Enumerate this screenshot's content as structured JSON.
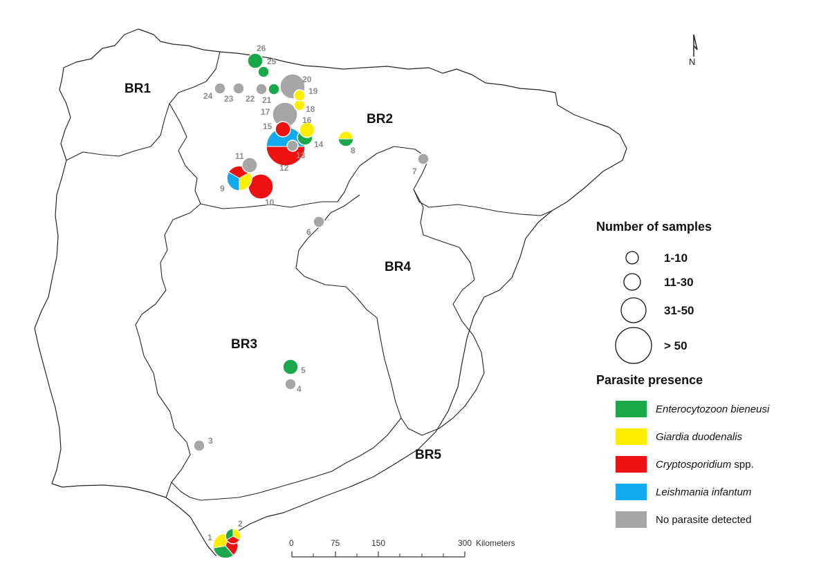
{
  "regions": [
    {
      "id": "br1",
      "label": "BR1"
    },
    {
      "id": "br2",
      "label": "BR2"
    },
    {
      "id": "br3",
      "label": "BR3"
    },
    {
      "id": "br4",
      "label": "BR4"
    },
    {
      "id": "br5",
      "label": "BR5"
    }
  ],
  "colors": {
    "enterocytozoon": "#1aa84a",
    "giardia": "#ffee00",
    "cryptosporidium": "#ee1111",
    "leishmania": "#12aaee",
    "none": "#a6a6a6"
  },
  "sites": [
    {
      "label": "1",
      "size": "31-50",
      "parasites": [
        "cryptosporidium",
        "enterocytozoon",
        "giardia"
      ]
    },
    {
      "label": "2",
      "size": "11-30",
      "parasites": [
        "giardia",
        "cryptosporidium",
        "enterocytozoon"
      ]
    },
    {
      "label": "3",
      "size": "1-10",
      "parasites": [
        "none"
      ]
    },
    {
      "label": "4",
      "size": "1-10",
      "parasites": [
        "none"
      ]
    },
    {
      "label": "5",
      "size": "11-30",
      "parasites": [
        "enterocytozoon"
      ]
    },
    {
      "label": "6",
      "size": "1-10",
      "parasites": [
        "none"
      ]
    },
    {
      "label": "7",
      "size": "1-10",
      "parasites": [
        "none"
      ]
    },
    {
      "label": "8",
      "size": "11-30",
      "parasites": [
        "enterocytozoon",
        "giardia"
      ]
    },
    {
      "label": "9",
      "size": "31-50",
      "parasites": [
        "cryptosporidium",
        "giardia",
        "leishmania"
      ]
    },
    {
      "label": "10",
      "size": "31-50",
      "parasites": [
        "cryptosporidium"
      ]
    },
    {
      "label": "11",
      "size": "11-30",
      "parasites": [
        "none"
      ]
    },
    {
      "label": "12",
      "size": "> 50",
      "parasites": [
        "leishmania",
        "cryptosporidium"
      ]
    },
    {
      "label": "13",
      "size": "1-10",
      "parasites": [
        "none"
      ]
    },
    {
      "label": "14",
      "size": "11-30",
      "parasites": [
        "enterocytozoon"
      ]
    },
    {
      "label": "15",
      "size": "11-30",
      "parasites": [
        "cryptosporidium"
      ]
    },
    {
      "label": "16",
      "size": "11-30",
      "parasites": [
        "giardia"
      ]
    },
    {
      "label": "17",
      "size": "31-50",
      "parasites": [
        "none"
      ]
    },
    {
      "label": "18",
      "size": "1-10",
      "parasites": [
        "giardia"
      ]
    },
    {
      "label": "19",
      "size": "1-10",
      "parasites": [
        "giardia"
      ]
    },
    {
      "label": "20",
      "size": "31-50",
      "parasites": [
        "none"
      ]
    },
    {
      "label": "21",
      "size": "1-10",
      "parasites": [
        "enterocytozoon"
      ]
    },
    {
      "label": "22",
      "size": "1-10",
      "parasites": [
        "none"
      ]
    },
    {
      "label": "23",
      "size": "1-10",
      "parasites": [
        "none"
      ]
    },
    {
      "label": "24",
      "size": "1-10",
      "parasites": [
        "none"
      ]
    },
    {
      "label": "25",
      "size": "1-10",
      "parasites": [
        "enterocytozoon"
      ]
    },
    {
      "label": "26",
      "size": "11-30",
      "parasites": [
        "enterocytozoon"
      ]
    }
  ],
  "legend": {
    "size_title": "Number of samples",
    "sizes": [
      "1-10",
      "11-30",
      "31-50",
      "> 50"
    ],
    "presence_title": "Parasite presence",
    "items": [
      {
        "key": "enterocytozoon",
        "italic": "Enterocytozoon bieneusi",
        "plain": ""
      },
      {
        "key": "giardia",
        "italic": "Giardia duodenalis",
        "plain": ""
      },
      {
        "key": "cryptosporidium",
        "italic": "Cryptosporidium",
        "plain": " spp."
      },
      {
        "key": "leishmania",
        "italic": "Leishmania infantum",
        "plain": ""
      },
      {
        "key": "none",
        "italic": "",
        "plain": "No parasite detected"
      }
    ]
  },
  "scale": {
    "ticks": [
      "0",
      "75",
      "150",
      "300"
    ],
    "unit": "Kilometers"
  },
  "north_label": "N"
}
